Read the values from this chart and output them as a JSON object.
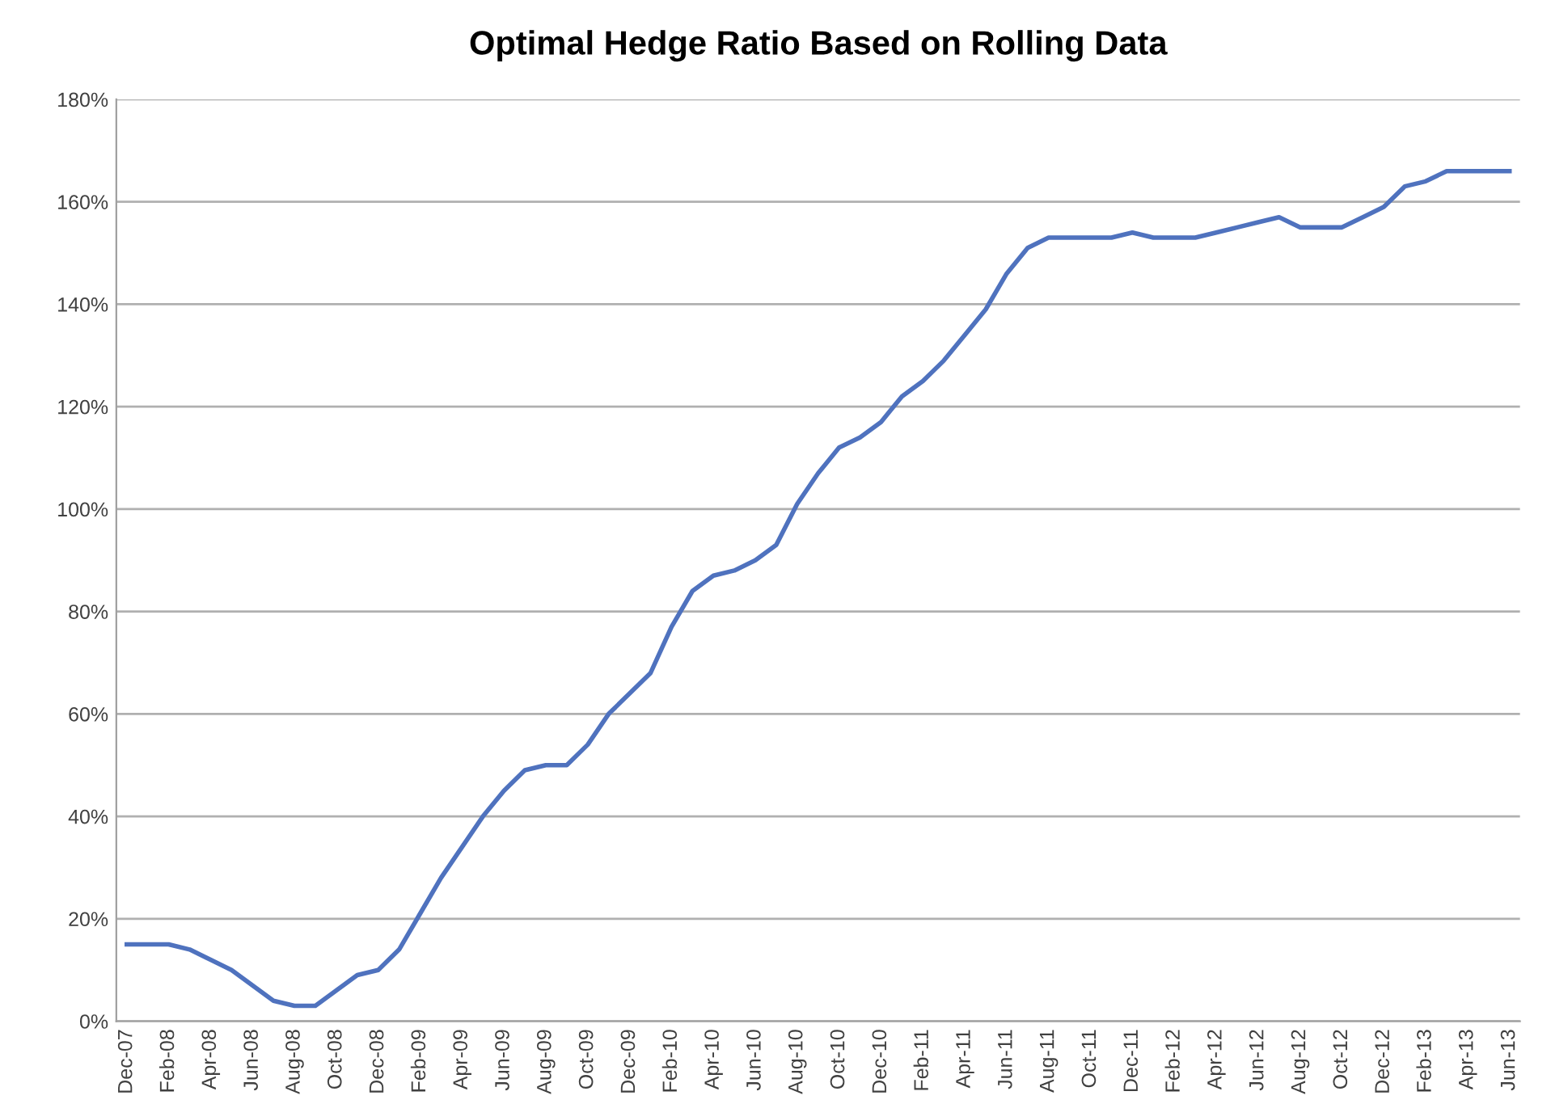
{
  "chart_data": {
    "type": "line",
    "title": "Optimal Hedge Ratio Based on Rolling Data",
    "categories": [
      "Dec-07",
      null,
      "Feb-08",
      null,
      "Apr-08",
      null,
      "Jun-08",
      null,
      "Aug-08",
      null,
      "Oct-08",
      null,
      "Dec-08",
      null,
      "Feb-09",
      null,
      "Apr-09",
      null,
      "Jun-09",
      null,
      "Aug-09",
      null,
      "Oct-09",
      null,
      "Dec-09",
      null,
      "Feb-10",
      null,
      "Apr-10",
      null,
      "Jun-10",
      null,
      "Aug-10",
      null,
      "Oct-10",
      null,
      "Dec-10",
      null,
      "Feb-11",
      null,
      "Apr-11",
      null,
      "Jun-11",
      null,
      "Aug-11",
      null,
      "Oct-11",
      null,
      "Dec-11",
      null,
      "Feb-12",
      null,
      "Apr-12",
      null,
      "Jun-12",
      null,
      "Aug-12",
      null,
      "Oct-12",
      null,
      "Dec-12",
      null,
      "Feb-13",
      null,
      "Apr-13",
      null,
      "Jun-13"
    ],
    "series": [
      {
        "color": "#4f72be",
        "values": [
          15,
          15,
          15,
          14,
          12,
          10,
          7,
          4,
          3,
          3,
          6,
          9,
          10,
          14,
          21,
          28,
          34,
          40,
          45,
          49,
          50,
          50,
          54,
          60,
          64,
          68,
          77,
          84,
          87,
          88,
          90,
          93,
          101,
          107,
          112,
          114,
          117,
          122,
          125,
          129,
          134,
          139,
          146,
          151,
          153,
          153,
          153,
          153,
          154,
          153,
          153,
          153,
          154,
          155,
          156,
          157,
          155,
          155,
          155,
          157,
          159,
          163,
          164,
          166,
          166,
          166,
          166
        ]
      }
    ],
    "ylim": [
      0,
      180
    ],
    "yticks": [
      {
        "value": 0,
        "label": "0%"
      },
      {
        "value": 20,
        "label": "20%"
      },
      {
        "value": 40,
        "label": "40%"
      },
      {
        "value": 60,
        "label": "60%"
      },
      {
        "value": 80,
        "label": "80%"
      },
      {
        "value": 100,
        "label": "100%"
      },
      {
        "value": 120,
        "label": "120%"
      },
      {
        "value": 140,
        "label": "140%"
      },
      {
        "value": 160,
        "label": "160%"
      },
      {
        "value": 180,
        "label": "180%"
      }
    ],
    "grid": "y",
    "marker": "none",
    "line_style": "solid"
  }
}
